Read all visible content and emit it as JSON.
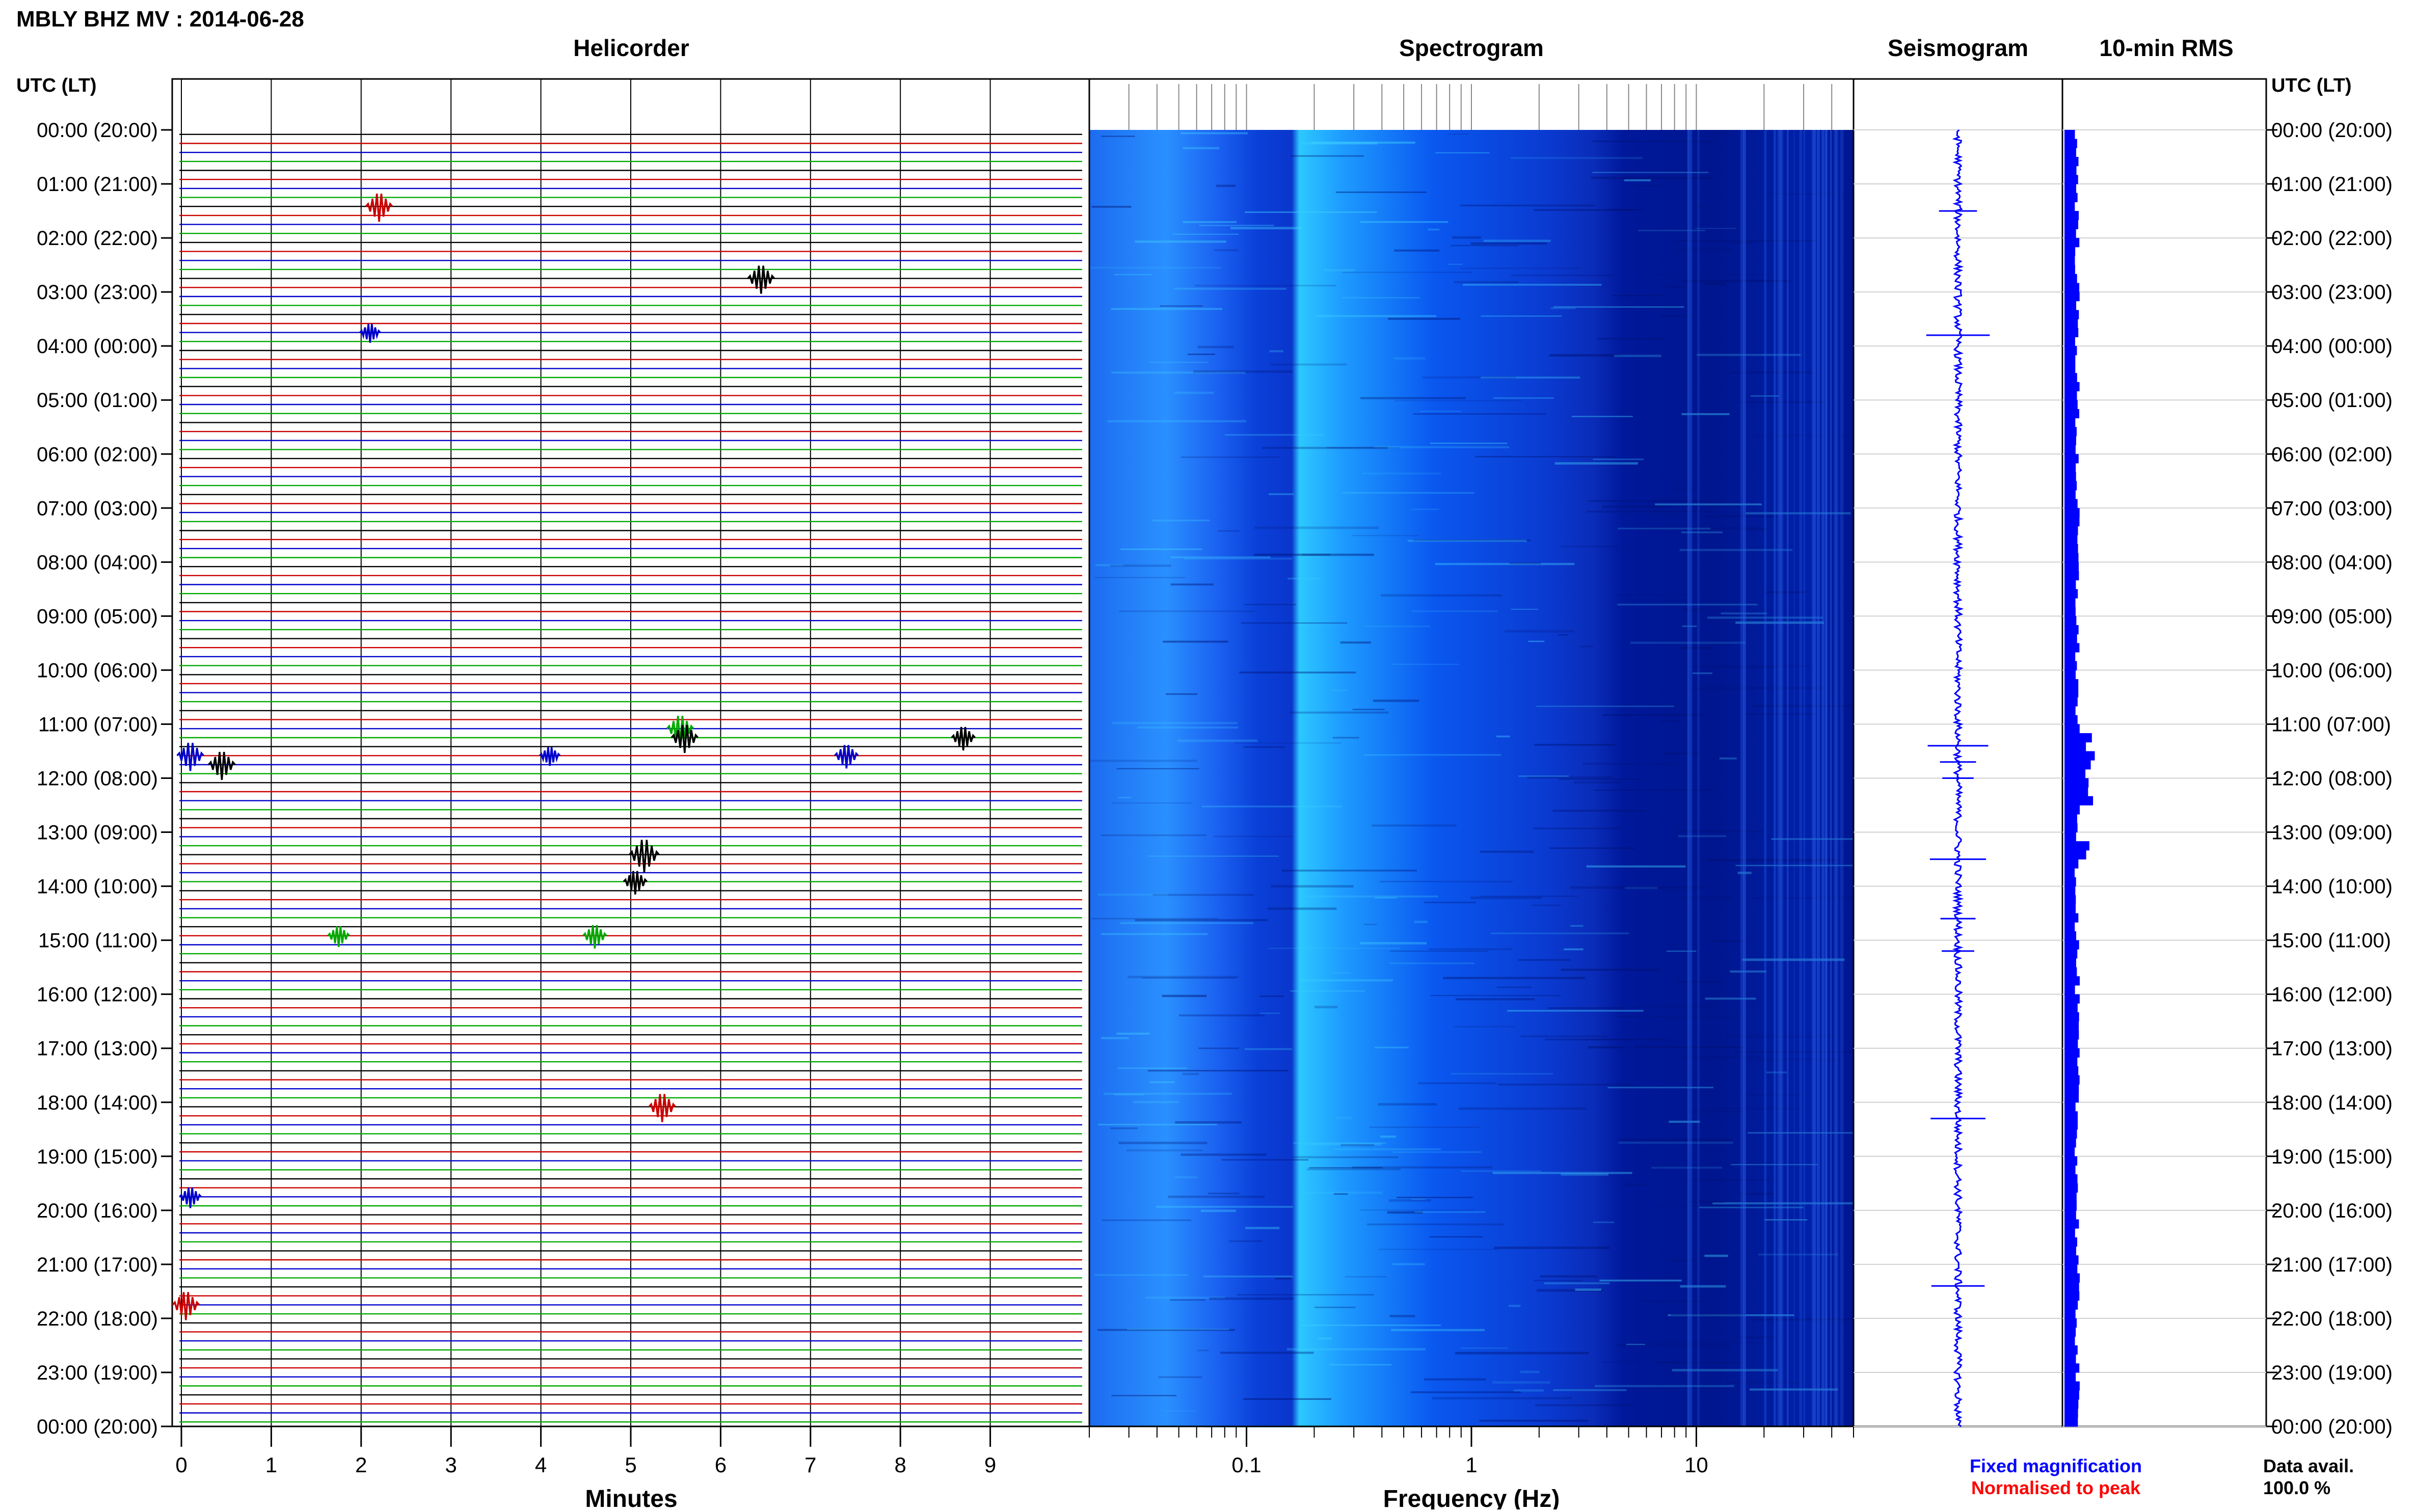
{
  "header": {
    "title": "MBLY BHZ MV : 2014-06-28"
  },
  "panels": {
    "helicorder_title": "Helicorder",
    "spectrogram_title": "Spectrogram",
    "seismogram_title": "Seismogram",
    "rms_title": "10-min RMS",
    "left_axis_title": "UTC (LT)",
    "right_axis_title": "UTC (LT)"
  },
  "legend": {
    "fixed_label": "Fixed magnification",
    "normalised_label": "Normalised to peak",
    "fixed_color": "#0000ff",
    "normalised_color": "#ff0000"
  },
  "availability": {
    "label": "Data avail.",
    "value": "100.0 %"
  },
  "colors": {
    "trace_cycle": [
      "#000000",
      "#cc0000",
      "#0000cc",
      "#00aa00"
    ],
    "spectrogram_dark": "#00108c",
    "spectrogram_mid": "#0050ff",
    "spectrogram_light": "#30c8ff",
    "seismogram": "#0000ff",
    "rms": "#0000ff"
  },
  "chart_data": [
    {
      "type": "line",
      "name": "helicorder",
      "title": "Helicorder",
      "xlabel": "Minutes",
      "xlim": [
        0,
        10
      ],
      "x_ticks": [
        "0",
        "1",
        "2",
        "3",
        "4",
        "5",
        "6",
        "7",
        "8",
        "9"
      ],
      "rows_per_hour": 6,
      "hours": 24,
      "events": [
        {
          "hour": 1,
          "row": 2,
          "minute": 2.2,
          "amp": 2,
          "color": 1
        },
        {
          "hour": 2,
          "row": 4,
          "minute": 6.45,
          "amp": 2,
          "color": 0
        },
        {
          "hour": 3,
          "row": 4,
          "minute": 2.1,
          "amp": 1,
          "color": 2
        },
        {
          "hour": 11,
          "row": 0,
          "minute": 5.55,
          "amp": 2,
          "color": 3
        },
        {
          "hour": 11,
          "row": 1,
          "minute": 5.6,
          "amp": 2,
          "color": 0
        },
        {
          "hour": 11,
          "row": 1,
          "minute": 8.7,
          "amp": 1.5,
          "color": 0
        },
        {
          "hour": 11,
          "row": 3,
          "minute": 0.1,
          "amp": 2,
          "color": 2
        },
        {
          "hour": 11,
          "row": 3,
          "minute": 7.4,
          "amp": 1.5,
          "color": 2
        },
        {
          "hour": 11,
          "row": 3,
          "minute": 4.1,
          "amp": 1,
          "color": 2
        },
        {
          "hour": 11,
          "row": 4,
          "minute": 0.45,
          "amp": 2,
          "color": 0
        },
        {
          "hour": 13,
          "row": 2,
          "minute": 5.15,
          "amp": 2.5,
          "color": 0
        },
        {
          "hour": 13,
          "row": 5,
          "minute": 5.05,
          "amp": 1.5,
          "color": 0
        },
        {
          "hour": 14,
          "row": 5,
          "minute": 1.75,
          "amp": 1.2,
          "color": 3
        },
        {
          "hour": 14,
          "row": 5,
          "minute": 4.6,
          "amp": 1.5,
          "color": 3
        },
        {
          "hour": 18,
          "row": 0,
          "minute": 5.35,
          "amp": 2,
          "color": 1
        },
        {
          "hour": 19,
          "row": 4,
          "minute": 0.1,
          "amp": 1.2,
          "color": 2
        },
        {
          "hour": 21,
          "row": 4,
          "minute": 0.05,
          "amp": 2,
          "color": 1
        }
      ]
    },
    {
      "type": "heatmap",
      "name": "spectrogram",
      "title": "Spectrogram",
      "xlabel": "Frequency (Hz)",
      "x_scale": "log",
      "xlim": [
        0.02,
        50
      ],
      "x_ticks": [
        "0.1",
        "1",
        "10"
      ]
    },
    {
      "type": "line",
      "name": "seismogram",
      "title": "Seismogram",
      "spike_hours": [
        1.5,
        3.8,
        11.4,
        11.7,
        12.0,
        13.5,
        14.6,
        15.2,
        18.3,
        21.4
      ]
    },
    {
      "type": "bar",
      "name": "rms",
      "title": "10-min RMS",
      "peak_hours": [
        11.3,
        11.6,
        11.8,
        12.0,
        12.2,
        13.2
      ]
    },
    {
      "type": "table",
      "name": "time_axis",
      "ylabel": "UTC (LT)",
      "y_ticks": [
        "00:00 (20:00)",
        "01:00 (21:00)",
        "02:00 (22:00)",
        "03:00 (23:00)",
        "04:00 (00:00)",
        "05:00 (01:00)",
        "06:00 (02:00)",
        "07:00 (03:00)",
        "08:00 (04:00)",
        "09:00 (05:00)",
        "10:00 (06:00)",
        "11:00 (07:00)",
        "12:00 (08:00)",
        "13:00 (09:00)",
        "14:00 (10:00)",
        "15:00 (11:00)",
        "16:00 (12:00)",
        "17:00 (13:00)",
        "18:00 (14:00)",
        "19:00 (15:00)",
        "20:00 (16:00)",
        "21:00 (17:00)",
        "22:00 (18:00)",
        "23:00 (19:00)",
        "00:00 (20:00)"
      ]
    }
  ]
}
